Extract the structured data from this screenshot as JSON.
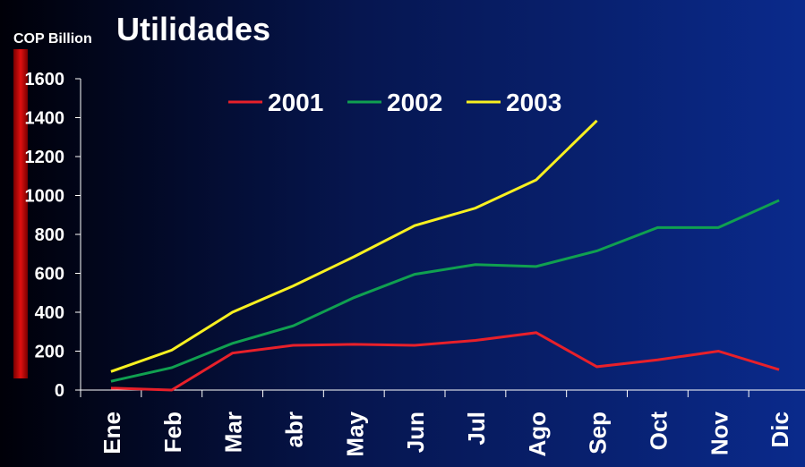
{
  "chart_data": {
    "type": "line",
    "title": "Utilidades",
    "y_axis_label": "COP Billion",
    "categories": [
      "Ene",
      "Feb",
      "Mar",
      "abr",
      "May",
      "Jun",
      "Jul",
      "Ago",
      "Sep",
      "Oct",
      "Nov",
      "Dic"
    ],
    "series": [
      {
        "name": "2001",
        "color": "#e8202a",
        "values": [
          10,
          0,
          190,
          230,
          235,
          230,
          255,
          295,
          120,
          155,
          200,
          105
        ]
      },
      {
        "name": "2002",
        "color": "#10a050",
        "values": [
          45,
          115,
          240,
          330,
          475,
          595,
          645,
          635,
          715,
          835,
          835,
          975
        ]
      },
      {
        "name": "2003",
        "color": "#f8f020",
        "values": [
          95,
          205,
          400,
          535,
          685,
          845,
          935,
          1080,
          1385,
          null,
          null,
          null
        ]
      }
    ],
    "ylim": [
      0,
      1600
    ],
    "yticks": [
      0,
      200,
      400,
      600,
      800,
      1000,
      1200,
      1400,
      1600
    ],
    "grid": false,
    "legend": "top"
  }
}
